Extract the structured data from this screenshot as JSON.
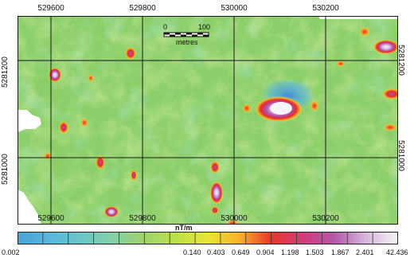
{
  "map": {
    "unit": "nT/m",
    "x_ticks": [
      "529600",
      "529800",
      "530000",
      "530200"
    ],
    "y_ticks": [
      "5281200",
      "5281000"
    ],
    "scale_bar": {
      "start": "0",
      "end": "100",
      "unit": "metres"
    },
    "colorbar_labels": [
      "0.002",
      "0.140",
      "0.403",
      "0.649",
      "0.904",
      "1.198",
      "1.503",
      "1.867",
      "2.401",
      "42.436"
    ],
    "colorbar_colors": [
      "#4aa3d8",
      "#5ab6dc",
      "#6cc7c8",
      "#86cfa8",
      "#9fd36d",
      "#bde04a",
      "#e8e634",
      "#f7b12c",
      "#e8362b",
      "#d23c7a",
      "#b158a9",
      "#d8b8dd",
      "#f4f2f6"
    ]
  }
}
